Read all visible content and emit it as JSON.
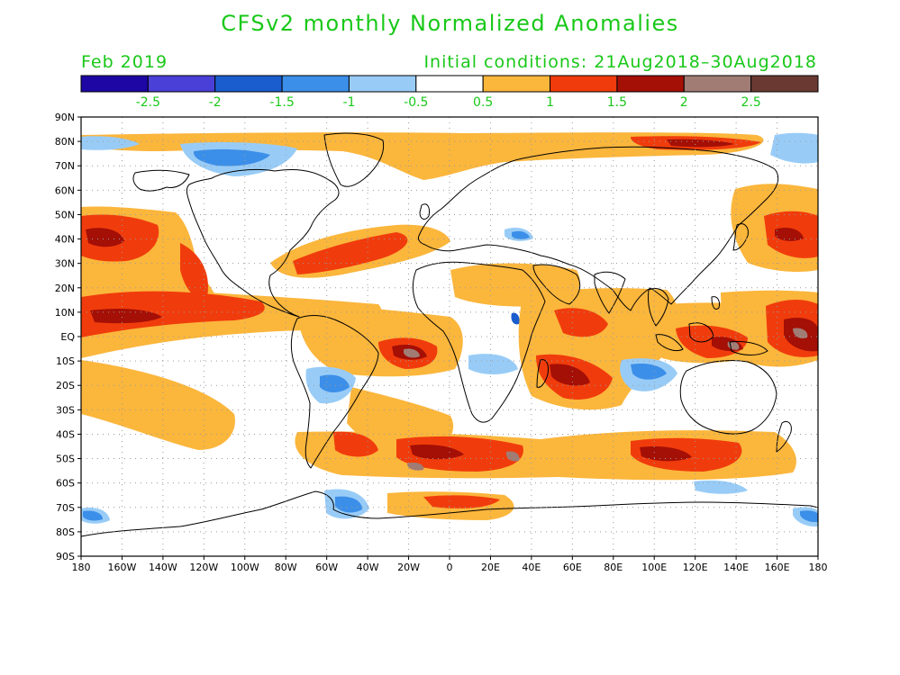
{
  "title": "CFSv2 monthly Normalized Anomalies",
  "month": "Feb 2019",
  "initial_conditions": "Initial conditions: 21Aug2018–30Aug2018",
  "colors": {
    "text": "#19c819",
    "land_outline": "#000000",
    "frame": "#000000"
  },
  "colorbar": {
    "bins": [
      {
        "color": "#1d06a3"
      },
      {
        "color": "#4a3fd6"
      },
      {
        "color": "#1a5dcf"
      },
      {
        "color": "#3c8fe8"
      },
      {
        "color": "#98ccf7"
      },
      {
        "color": "#ffffff"
      },
      {
        "color": "#fbb63c"
      },
      {
        "color": "#f03c0c"
      },
      {
        "color": "#a40f06"
      },
      {
        "color": "#a07c74"
      },
      {
        "color": "#6a3a32"
      }
    ],
    "labels": [
      "-2.5",
      "-2",
      "-1.5",
      "-1",
      "-0.5",
      "0.5",
      "1",
      "1.5",
      "2",
      "2.5"
    ]
  },
  "axes": {
    "lat_labels": [
      "90N",
      "80N",
      "70N",
      "60N",
      "50N",
      "40N",
      "30N",
      "20N",
      "10N",
      "EQ",
      "10S",
      "20S",
      "30S",
      "40S",
      "50S",
      "60S",
      "70S",
      "80S",
      "90S"
    ],
    "lon_labels": [
      "180",
      "160W",
      "140W",
      "120W",
      "100W",
      "80W",
      "60W",
      "40W",
      "20W",
      "0",
      "20E",
      "40E",
      "60E",
      "80E",
      "100E",
      "120E",
      "140E",
      "160E",
      "180"
    ]
  }
}
